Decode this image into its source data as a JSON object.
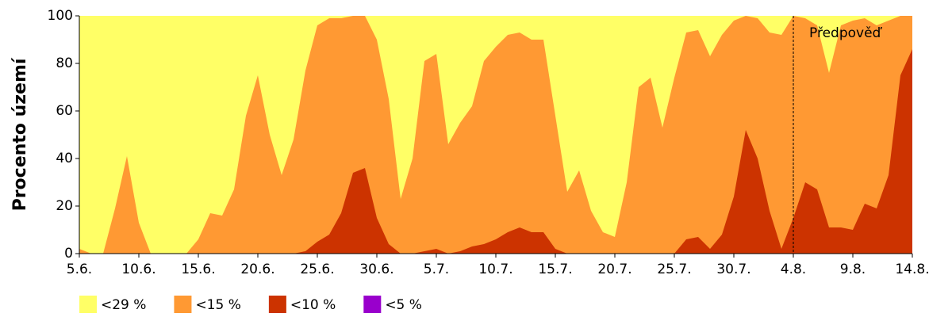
{
  "chart_data": {
    "type": "area",
    "ylabel": "Procento území",
    "categories": [
      "5.6.",
      null,
      null,
      null,
      null,
      "10.6.",
      null,
      null,
      null,
      null,
      "15.6.",
      null,
      null,
      null,
      null,
      "20.6.",
      null,
      null,
      null,
      null,
      "25.6.",
      null,
      null,
      null,
      null,
      "30.6.",
      null,
      null,
      null,
      null,
      "5.7.",
      null,
      null,
      null,
      null,
      "10.7.",
      null,
      null,
      null,
      null,
      "15.7.",
      null,
      null,
      null,
      null,
      "20.7.",
      null,
      null,
      null,
      null,
      "25.7.",
      null,
      null,
      null,
      null,
      "30.7.",
      null,
      null,
      null,
      null,
      "4.8.",
      null,
      null,
      null,
      null,
      "9.8.",
      null,
      null,
      null,
      null,
      "14.8."
    ],
    "series": [
      {
        "name": "<29 %",
        "color": "#ffff66",
        "values": [
          100,
          100,
          100,
          100,
          100,
          100,
          100,
          100,
          100,
          100,
          100,
          100,
          100,
          100,
          100,
          100,
          100,
          100,
          100,
          100,
          100,
          100,
          100,
          100,
          100,
          100,
          100,
          100,
          100,
          100,
          100,
          100,
          100,
          100,
          100,
          100,
          100,
          100,
          100,
          100,
          100,
          100,
          100,
          100,
          100,
          100,
          100,
          100,
          100,
          100,
          100,
          100,
          100,
          100,
          100,
          100,
          100,
          100,
          100,
          100,
          100,
          100,
          100,
          100,
          100,
          100,
          100,
          100,
          100,
          100,
          100
        ]
      },
      {
        "name": "<15 %",
        "color": "#ff9933",
        "values": [
          2,
          0,
          0,
          19,
          41,
          13,
          0,
          0,
          0,
          0,
          6,
          17,
          16,
          27,
          58,
          75,
          50,
          33,
          48,
          77,
          96,
          99,
          99,
          100,
          100,
          90,
          65,
          23,
          40,
          81,
          84,
          46,
          55,
          62,
          81,
          87,
          92,
          93,
          90,
          90,
          58,
          26,
          35,
          18,
          9,
          7,
          30,
          70,
          74,
          53,
          74,
          93,
          94,
          83,
          92,
          98,
          100,
          99,
          93,
          92,
          100,
          99,
          96,
          76,
          96,
          98,
          99,
          96,
          98,
          100,
          100
        ]
      },
      {
        "name": "<10 %",
        "color": "#cc3300",
        "values": [
          0,
          0,
          0,
          0,
          0,
          0,
          0,
          0,
          0,
          0,
          0,
          0,
          0,
          0,
          0,
          0,
          0,
          0,
          0,
          1,
          5,
          8,
          17,
          34,
          36,
          15,
          4,
          0,
          0,
          1,
          2,
          0,
          1,
          3,
          4,
          6,
          9,
          11,
          9,
          9,
          2,
          0,
          0,
          0,
          0,
          0,
          0,
          0,
          0,
          0,
          0,
          6,
          7,
          2,
          8,
          24,
          52,
          40,
          18,
          2,
          15,
          30,
          27,
          11,
          11,
          10,
          21,
          19,
          33,
          75,
          86
        ]
      },
      {
        "name": "<5 %",
        "color": "#9900cc",
        "values": [
          0,
          0,
          0,
          0,
          0,
          0,
          0,
          0,
          0,
          0,
          0,
          0,
          0,
          0,
          0,
          0,
          0,
          0,
          0,
          0,
          0,
          0,
          0,
          0,
          0,
          0,
          0,
          0,
          0,
          0,
          0,
          0,
          0,
          0,
          0,
          0,
          0,
          0,
          0,
          0,
          0,
          0,
          0,
          0,
          0,
          0,
          0,
          0,
          0,
          0,
          0,
          0,
          0,
          0,
          0,
          0,
          0,
          0,
          0,
          0,
          0,
          0,
          0,
          0,
          0,
          0,
          0,
          0,
          0,
          0,
          0
        ]
      }
    ],
    "annotation": {
      "text": "Předpověď",
      "x": "4.8."
    },
    "ylim": [
      0,
      100
    ],
    "yticks": [
      0,
      20,
      40,
      60,
      80,
      100
    ],
    "legend": "bottom"
  }
}
